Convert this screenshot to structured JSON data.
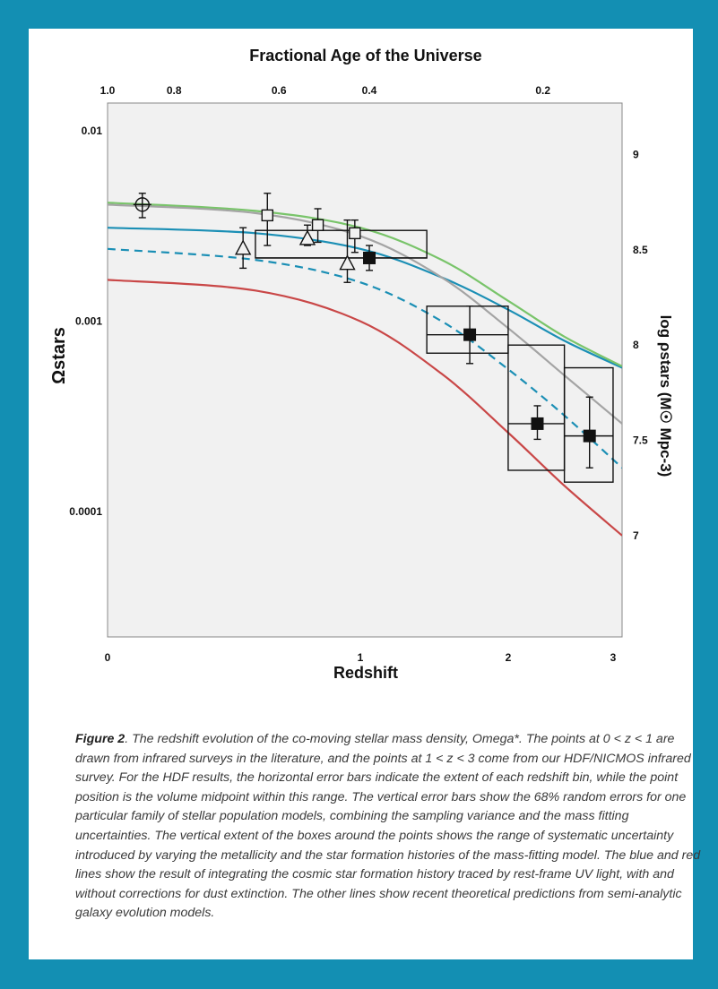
{
  "page": {
    "frame_color": "#138fb3",
    "card_color": "#ffffff",
    "plot_background": "#f1f1f1"
  },
  "caption": {
    "label": "Figure 2",
    "text": ". The redshift evolution of the co-moving stellar mass density, Omega*. The points at 0 < z < 1 are drawn from infrared surveys in the literature, and the points at 1 < z < 3 come from our HDF/NICMOS infrared survey. For the HDF results, the horizontal error bars indicate the extent of each redshift bin, while the point position is the volume midpoint within this range. The vertical error bars show the 68% random errors for one particular family of stellar population models, combining the sampling variance and the mass fitting uncertainties. The vertical extent of the boxes around the points shows the range of systematic uncertainty introduced by varying the metallicity and the star formation histories of the mass-fitting model. The blue and red lines show the result of integrating the cosmic star formation history traced by rest-frame UV light, with and without corrections for dust extinction. The other lines show recent theoretical predictions from semi-analytic galaxy evolution models."
  },
  "chart_data": {
    "type": "scatter",
    "xlabel": "Redshift",
    "x_top_label": "Fractional Age of the Universe",
    "ylabel_left": "Ωstars",
    "ylabel_right": "log ρstars (M☉ Mpc-3)",
    "x_scale": "log(1+z)",
    "xlim": [
      0,
      3.1
    ],
    "ylim": [
      2.2e-05,
      0.014
    ],
    "y_scale": "log",
    "grid": false,
    "x_ticks": [
      "0",
      "1",
      "2",
      "3"
    ],
    "x_tick_values": [
      0,
      1,
      2,
      3
    ],
    "top_ticks": [
      "1.0",
      "0.8",
      "0.6",
      "0.4",
      "0.2"
    ],
    "top_tick_redshifts": [
      0,
      0.2,
      0.6,
      1.05,
      2.3
    ],
    "y_ticks_left": [
      "0.01",
      "0.001",
      "0.0001"
    ],
    "y_tick_values_left": [
      0.01,
      0.001,
      0.0001
    ],
    "y_ticks_right": [
      "9",
      "8.5",
      "8",
      "7.5",
      "7"
    ],
    "y_tick_values_right": [
      9,
      8.5,
      8,
      7.5,
      7
    ],
    "right_axis_omega_at": {
      "9": 0.0075,
      "7": 7.5e-05
    },
    "literature_points": [
      {
        "marker": "circle",
        "z": 0.1,
        "y": 0.0041,
        "ylo": 0.0035,
        "yhi": 0.0047
      },
      {
        "marker": "triangle",
        "z": 0.45,
        "y": 0.0024,
        "ylo": 0.0019,
        "yhi": 0.0031
      },
      {
        "marker": "square-open",
        "z": 0.55,
        "y": 0.0036,
        "ylo": 0.0025,
        "yhi": 0.0047
      },
      {
        "marker": "triangle",
        "z": 0.73,
        "y": 0.0027,
        "ylo": 0.0025,
        "yhi": 0.0032
      },
      {
        "marker": "square-open",
        "z": 0.78,
        "y": 0.0032,
        "ylo": 0.0026,
        "yhi": 0.0039
      },
      {
        "marker": "triangle",
        "z": 0.93,
        "y": 0.002,
        "ylo": 0.0016,
        "yhi": 0.0034
      },
      {
        "marker": "square-open",
        "z": 0.97,
        "y": 0.0029,
        "ylo": 0.0023,
        "yhi": 0.0034
      }
    ],
    "hdf_points": [
      {
        "z": 1.05,
        "y": 0.00215,
        "ylo": 0.00185,
        "yhi": 0.0025,
        "zlo": 0.5,
        "zhi": 1.4,
        "box_lo": 0.00215,
        "box_hi": 0.003
      },
      {
        "z": 1.7,
        "y": 0.00085,
        "ylo": 0.0006,
        "yhi": 0.0012,
        "zlo": 1.4,
        "zhi": 2.0,
        "box_lo": 0.00068,
        "box_hi": 0.0012
      },
      {
        "z": 2.25,
        "y": 0.00029,
        "ylo": 0.00024,
        "yhi": 0.00036,
        "zlo": 2.0,
        "zhi": 2.5,
        "box_lo": 0.000165,
        "box_hi": 0.00075
      },
      {
        "z": 2.75,
        "y": 0.00025,
        "ylo": 0.00017,
        "yhi": 0.0004,
        "zlo": 2.5,
        "zhi": 3.0,
        "box_lo": 0.000143,
        "box_hi": 0.00057
      }
    ],
    "series": [
      {
        "color": "#1b8fb5",
        "style": "solid",
        "x": [
          0,
          0.5,
          1.0,
          1.5,
          2.0,
          2.5,
          3.1
        ],
        "y": [
          0.0031,
          0.0029,
          0.0024,
          0.0017,
          0.00115,
          0.00079,
          0.00057
        ]
      },
      {
        "color": "#1b8fb5",
        "style": "dashed",
        "x": [
          0,
          0.5,
          1.0,
          1.5,
          2.0,
          2.5,
          3.1
        ],
        "y": [
          0.0024,
          0.0021,
          0.0016,
          0.001,
          0.00056,
          0.00032,
          0.00017
        ]
      },
      {
        "color": "#c94747",
        "style": "solid",
        "x": [
          0,
          0.5,
          1.0,
          1.5,
          2.0,
          2.5,
          3.1
        ],
        "y": [
          0.00165,
          0.00145,
          0.001,
          0.00053,
          0.00026,
          0.000137,
          7.5e-05
        ]
      },
      {
        "color": "#79c46a",
        "style": "solid",
        "x": [
          0,
          0.5,
          1.0,
          1.5,
          2.0,
          2.5,
          3.1
        ],
        "y": [
          0.0042,
          0.0038,
          0.0031,
          0.0021,
          0.00128,
          0.00083,
          0.00058
        ]
      },
      {
        "color": "#a4a4a4",
        "style": "solid",
        "x": [
          0,
          0.5,
          1.0,
          1.5,
          2.0,
          2.5,
          3.1
        ],
        "y": [
          0.0041,
          0.0037,
          0.0028,
          0.0017,
          0.00092,
          0.00052,
          0.00029
        ]
      }
    ]
  }
}
